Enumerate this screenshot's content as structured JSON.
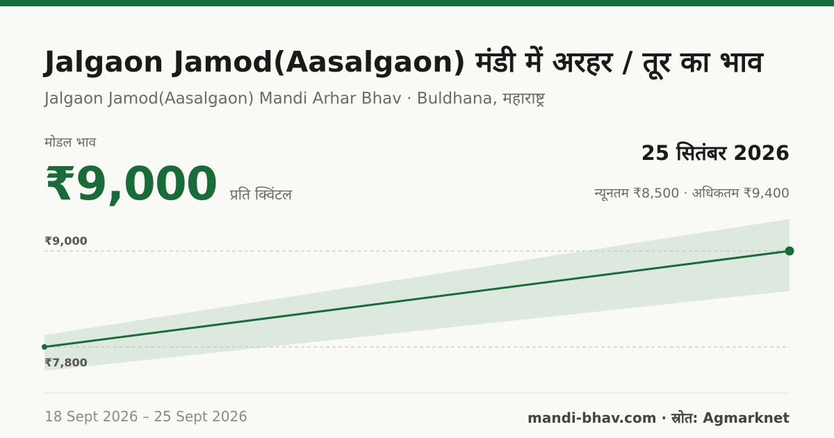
{
  "header": {
    "title": "Jalgaon Jamod(Aasalgaon) मंडी में अरहर / तूर का भाव",
    "subtitle": "Jalgaon Jamod(Aasalgaon) Mandi Arhar Bhav · Buldhana, महाराष्ट्र"
  },
  "price": {
    "label": "मोडल भाव",
    "value": "₹9,000",
    "unit": "प्रति क्विंटल",
    "date": "25 सितंबर 2026",
    "range": "न्यूनतम ₹8,500 · अधिकतम ₹9,400"
  },
  "chart_data": {
    "type": "line",
    "x": [
      "18 Sept 2026",
      "25 Sept 2026"
    ],
    "series": [
      {
        "values": [
          7800,
          9000
        ]
      }
    ],
    "band": {
      "min": [
        7500,
        8500
      ],
      "max": [
        7950,
        9400
      ]
    },
    "y_ticks": [
      {
        "value": 9000,
        "label": "₹9,000"
      },
      {
        "value": 7800,
        "label": "₹7,800"
      }
    ],
    "grid": "dashed at tick values",
    "colors": {
      "line": "#1a6b3a",
      "band": "#dde8de",
      "grid": "#bdbdb6"
    }
  },
  "footer": {
    "date_range": "18 Sept 2026 – 25 Sept 2026",
    "source": "mandi-bhav.com · स्रोत: Agmarknet"
  }
}
